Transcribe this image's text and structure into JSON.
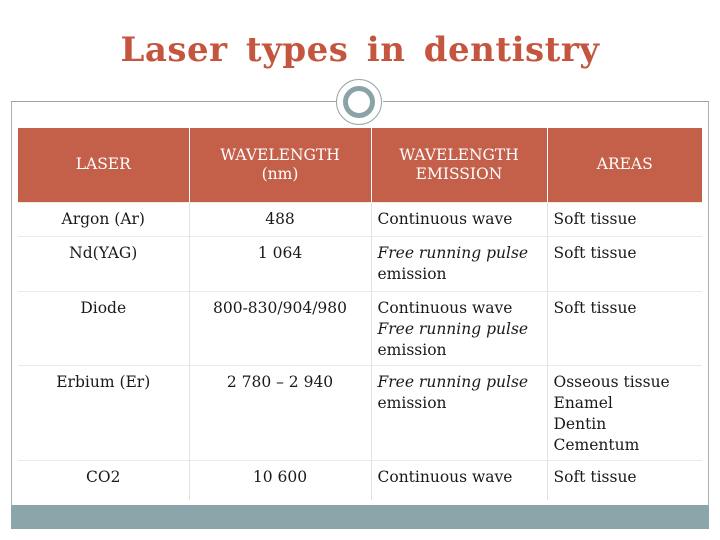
{
  "slide": {
    "title": "Laser types in dentistry"
  },
  "table": {
    "headers": [
      {
        "line1": "LASER",
        "line2": ""
      },
      {
        "line1": "WAVELENGTH",
        "line2": "(nm)"
      },
      {
        "line1": "WAVELENGTH",
        "line2": "EMISSION"
      },
      {
        "line1": "AREAS",
        "line2": ""
      }
    ],
    "rows": [
      {
        "laser": "Argon (Ar)",
        "wavelength": "488",
        "emission": [
          "Continuous wave"
        ],
        "emission_italic": [
          false
        ],
        "areas": [
          "Soft tissue"
        ]
      },
      {
        "laser": "Nd(YAG)",
        "wavelength": "1 064",
        "emission": [
          "Free running pulse",
          "emission"
        ],
        "emission_italic": [
          true,
          false
        ],
        "areas": [
          "Soft tissue"
        ]
      },
      {
        "laser": "Diode",
        "wavelength": "800-830/904/980",
        "emission": [
          "Continuous wave",
          "Free running pulse",
          "emission"
        ],
        "emission_italic": [
          false,
          true,
          false
        ],
        "areas": [
          "Soft tissue"
        ]
      },
      {
        "laser": "Erbium (Er)",
        "wavelength": "2 780 – 2 940",
        "emission": [
          "Free running pulse",
          "emission"
        ],
        "emission_italic": [
          true,
          false
        ],
        "areas": [
          "Osseous tissue",
          "Enamel",
          "Dentin",
          "Cementum"
        ]
      },
      {
        "laser": "CO2",
        "wavelength": "10 600",
        "emission": [
          "Continuous wave"
        ],
        "emission_italic": [
          false
        ],
        "areas": [
          "Soft tissue"
        ]
      }
    ]
  },
  "colors": {
    "title": "#c4553f",
    "header_fill": "#c4604a",
    "accent_teal": "#8aa6aa"
  }
}
